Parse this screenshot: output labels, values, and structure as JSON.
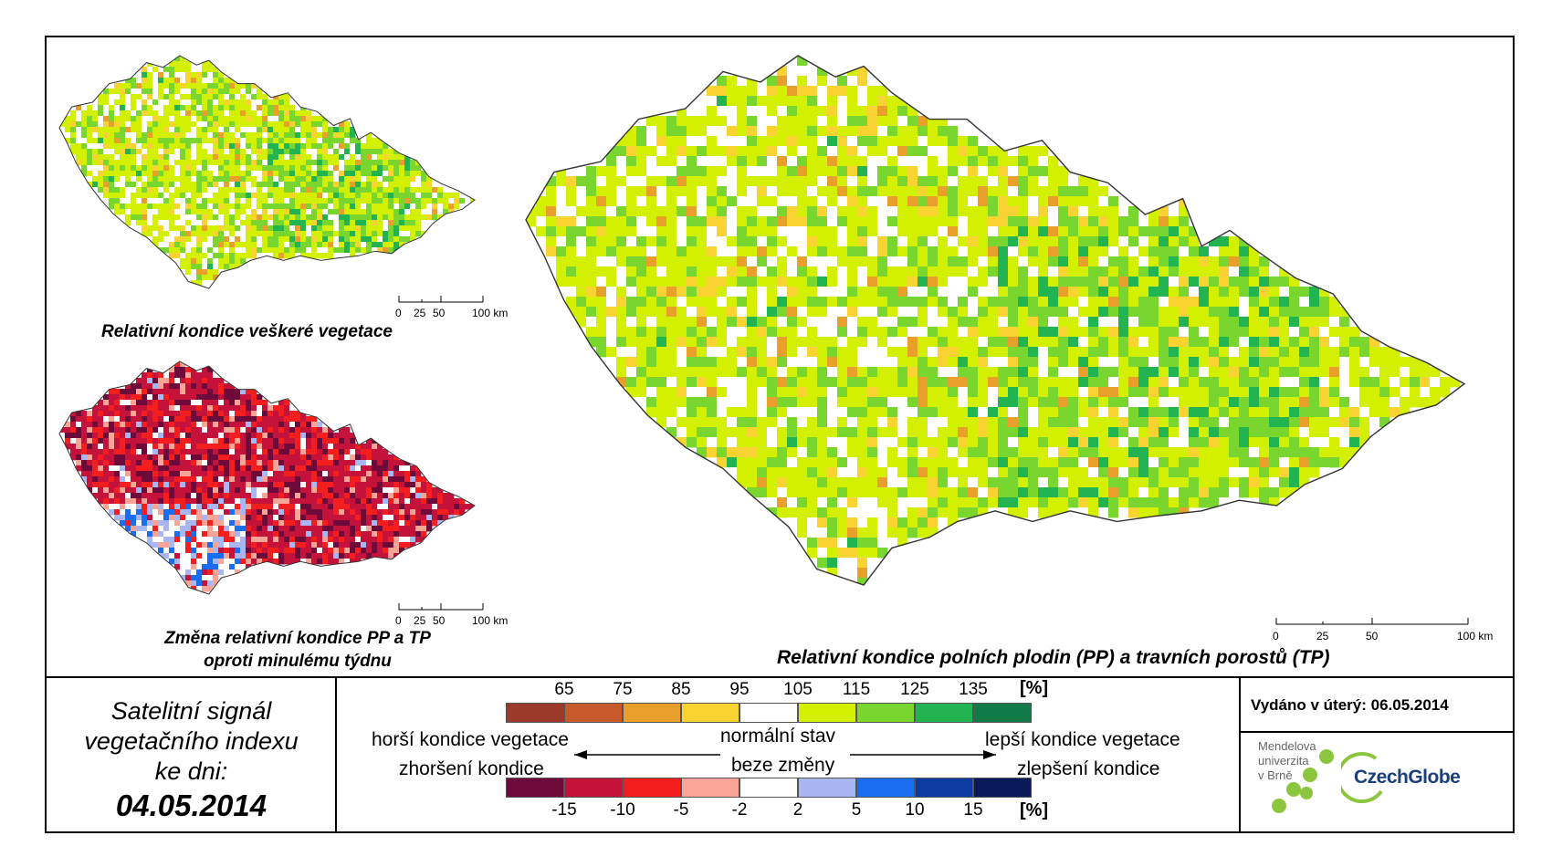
{
  "maps": {
    "small_top_title": "Relativní kondice veškeré vegetace",
    "small_bottom_title_line1": "Změna relativní kondice PP a TP",
    "small_bottom_title_line2": "oproti minulému týdnu",
    "main_title": "Relativní kondice polních plodin (PP) a travních porostů (TP)",
    "scale_labels": [
      "0",
      "25",
      "50",
      "100 km"
    ]
  },
  "info_panel": {
    "line1": "Satelitní signál",
    "line2": "vegetačního indexu",
    "line3": "ke dni:",
    "date": "04.05.2014"
  },
  "legend": {
    "top_values": [
      "65",
      "75",
      "85",
      "95",
      "105",
      "115",
      "125",
      "135"
    ],
    "top_unit": "[%]",
    "top_colors": [
      "#9b3a2a",
      "#c75a2a",
      "#e8a02a",
      "#f8d332",
      "#ffffff",
      "#d2f000",
      "#78d62e",
      "#22b450",
      "#127a46"
    ],
    "bottom_values": [
      "-15",
      "-10",
      "-5",
      "-2",
      "2",
      "5",
      "10",
      "15"
    ],
    "bottom_unit": "[%]",
    "bottom_colors": [
      "#6e0a3a",
      "#c4123a",
      "#f51e1e",
      "#f8a496",
      "#ffffff",
      "#a8b6f2",
      "#1a6cf0",
      "#0c3aa0",
      "#0a1a58"
    ],
    "worse_condition": "horší kondice vegetace",
    "normal_state": "normální stav",
    "better_condition": "lepší kondice vegetace",
    "worsening": "zhoršení kondice",
    "no_change": "beze změny",
    "improvement": "zlepšení kondice"
  },
  "issued": {
    "label": "Vydáno v úterý: 06.05.2014"
  },
  "logos": {
    "mendel_line1": "Mendelova",
    "mendel_line2": "univerzita",
    "mendel_line3": "v Brně",
    "czechglobe": "CzechGlobe"
  }
}
